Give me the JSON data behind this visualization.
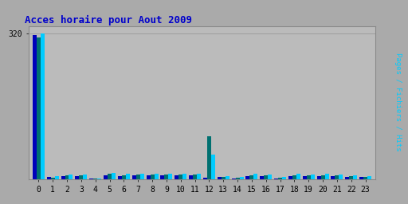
{
  "title": "Acces horaire pour Aout 2009",
  "hours": [
    0,
    1,
    2,
    3,
    4,
    5,
    6,
    7,
    8,
    9,
    10,
    11,
    12,
    13,
    14,
    15,
    16,
    17,
    18,
    19,
    20,
    21,
    22,
    23
  ],
  "pages": [
    318,
    5,
    7,
    8,
    2,
    10,
    8,
    10,
    9,
    10,
    10,
    10,
    4,
    5,
    3,
    8,
    7,
    3,
    8,
    7,
    8,
    7,
    6,
    5
  ],
  "fichiers": [
    312,
    4,
    9,
    9,
    2,
    12,
    10,
    11,
    11,
    11,
    11,
    11,
    95,
    6,
    4,
    10,
    9,
    4,
    10,
    9,
    10,
    9,
    8,
    6
  ],
  "hits": [
    320,
    7,
    11,
    11,
    3,
    14,
    12,
    13,
    13,
    13,
    13,
    13,
    55,
    7,
    5,
    12,
    11,
    5,
    12,
    11,
    12,
    11,
    10,
    7
  ],
  "ylim": [
    0,
    336
  ],
  "ytick_val": 320,
  "color_pages": "#0000bb",
  "color_fichiers": "#007070",
  "color_hits": "#00ccff",
  "bg_color": "#aaaaaa",
  "plot_bg": "#bbbbbb",
  "title_color": "#0000cc",
  "grid_color": "#999999",
  "ylabel": "Pages / Fichiers / Hits",
  "bar_width": 0.28
}
